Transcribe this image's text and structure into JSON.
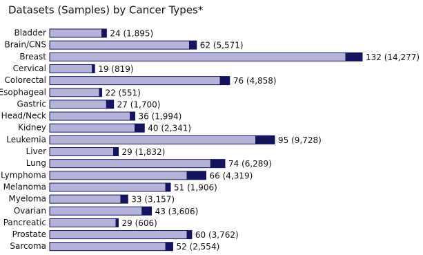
{
  "chart_data": {
    "type": "bar",
    "orientation": "horizontal",
    "stacked": true,
    "title": "Datasets (Samples) by Cancer Types*",
    "categories": [
      "Bladder",
      "Brain/CNS",
      "Breast",
      "Cervical",
      "Colorectal",
      "Esophageal",
      "Gastric",
      "Head/Neck",
      "Kidney",
      "Leukemia",
      "Liver",
      "Lung",
      "Lymphoma",
      "Melanoma",
      "Myeloma",
      "Ovarian",
      "Pancreatic",
      "Prostate",
      "Sarcoma"
    ],
    "series": [
      {
        "color": "#b4b4d8",
        "values": [
          22,
          59,
          125,
          18,
          72,
          21,
          24,
          34,
          36,
          87,
          27,
          68,
          58,
          49,
          30,
          39,
          28,
          58,
          49
        ]
      },
      {
        "color": "#15155e",
        "values": [
          2,
          3,
          7,
          1,
          4,
          1,
          3,
          2,
          4,
          8,
          2,
          6,
          8,
          2,
          3,
          4,
          1,
          2,
          3
        ]
      }
    ],
    "datasets": [
      24,
      62,
      132,
      19,
      76,
      22,
      27,
      36,
      40,
      95,
      29,
      74,
      66,
      51,
      33,
      43,
      29,
      60,
      52
    ],
    "samples": [
      1895,
      5571,
      14277,
      819,
      4858,
      551,
      1700,
      1994,
      2341,
      9728,
      1832,
      6289,
      4319,
      1906,
      3157,
      3606,
      606,
      3762,
      2554
    ],
    "value_labels": [
      "24 (1,895)",
      "62 (5,571)",
      "132 (14,277)",
      "19 (819)",
      "76 (4,858)",
      "22 (551)",
      "27 (1,700)",
      "36 (1,994)",
      "40 (2,341)",
      "95 (9,728)",
      "29 (1,832)",
      "74 (6,289)",
      "66 (4,319)",
      "51 (1,906)",
      "33 (3,157)",
      "43 (3,606)",
      "29 (606)",
      "60 (3,762)",
      "52 (2,554)"
    ]
  }
}
